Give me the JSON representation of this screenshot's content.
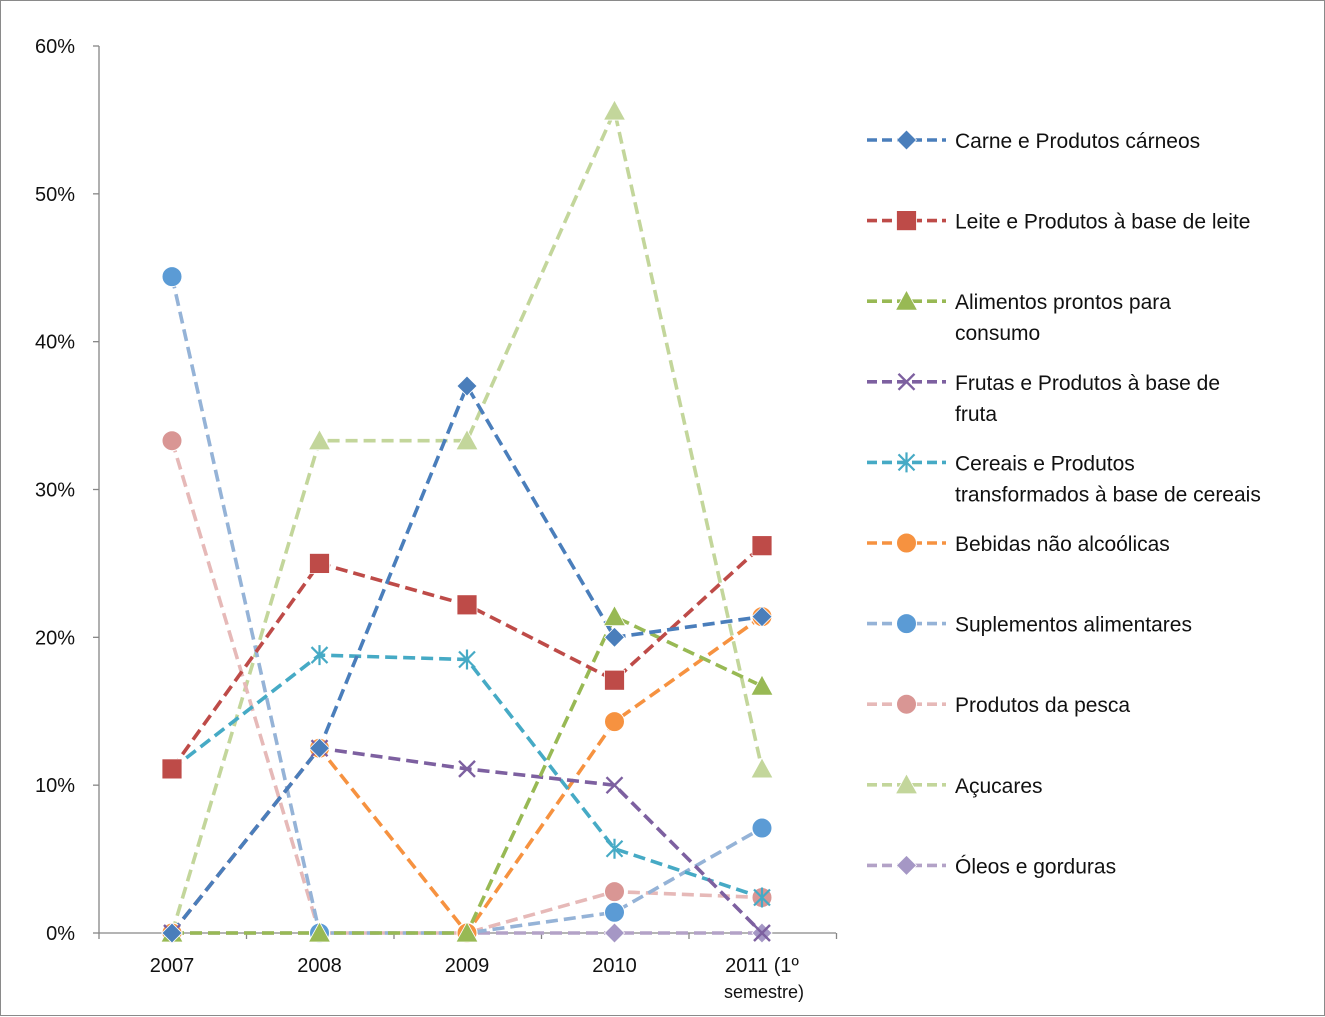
{
  "chart_data": {
    "type": "line",
    "title": "",
    "xlabel": "",
    "ylabel": "",
    "categories": [
      [
        "2007"
      ],
      [
        "2008"
      ],
      [
        "2009"
      ],
      [
        "2010"
      ],
      [
        "2011 (1º",
        "semestre)"
      ]
    ],
    "y_ticks": [
      "0%",
      "10%",
      "20%",
      "30%",
      "40%",
      "50%",
      "60%"
    ],
    "ylim": [
      0,
      60
    ],
    "grid": false,
    "legend_position": "right",
    "line_style": "dashed",
    "series": [
      {
        "name": "Carne e Produtos cárneos",
        "legend_lines": [
          "Carne e Produtos cárneos"
        ],
        "color": "#4A7EBB",
        "marker": "diamond",
        "values": [
          0,
          12.5,
          37.0,
          20.0,
          21.4
        ]
      },
      {
        "name": "Leite e Produtos à base de leite",
        "legend_lines": [
          "Leite e Produtos à base de leite"
        ],
        "color": "#BE4B48",
        "marker": "square",
        "values": [
          11.1,
          25.0,
          22.2,
          17.1,
          26.2
        ]
      },
      {
        "name": "Alimentos prontos para consumo",
        "legend_lines": [
          "Alimentos prontos para",
          "consumo"
        ],
        "color": "#98B954",
        "marker": "triangle",
        "values": [
          0,
          0,
          0,
          21.4,
          16.7
        ]
      },
      {
        "name": "Frutas e Produtos à base de fruta",
        "legend_lines": [
          "Frutas e Produtos à base de",
          "fruta"
        ],
        "color": "#7D60A0",
        "marker": "x",
        "values": [
          0,
          12.5,
          11.1,
          10.0,
          0
        ]
      },
      {
        "name": "Cereais e Produtos transformados à base de cereais",
        "legend_lines": [
          "Cereais e Produtos",
          "transformados à base de cereais"
        ],
        "color": "#46AAC5",
        "marker": "star",
        "values": [
          11.1,
          18.8,
          18.5,
          5.7,
          2.4
        ]
      },
      {
        "name": "Bebidas não alcoólicas",
        "legend_lines": [
          "Bebidas não alcoólicas"
        ],
        "color": "#F69240",
        "marker": "circle",
        "values": [
          0,
          12.5,
          0,
          14.3,
          21.4
        ]
      },
      {
        "name": "Suplementos alimentares",
        "legend_lines": [
          "Suplementos alimentares"
        ],
        "color": "#5B9BD5",
        "line_color": "#95B3D7",
        "marker": "circle",
        "values": [
          44.4,
          0,
          0,
          1.4,
          7.1
        ]
      },
      {
        "name": "Produtos da pesca",
        "legend_lines": [
          "Produtos da pesca"
        ],
        "color": "#D99694",
        "line_color": "#E6B9B8",
        "marker": "circle",
        "values": [
          33.3,
          0,
          0,
          2.8,
          2.4
        ]
      },
      {
        "name": "Açucares",
        "legend_lines": [
          "Açucares"
        ],
        "color": "#C3D69B",
        "marker": "triangle",
        "values": [
          0,
          33.3,
          33.3,
          55.6,
          11.1
        ]
      },
      {
        "name": "Óleos e gorduras",
        "legend_lines": [
          "Óleos e gorduras"
        ],
        "color": "#A597C5",
        "line_color": "#B3A2C7",
        "marker": "diamond",
        "values": [
          0,
          0,
          0,
          0,
          0
        ]
      }
    ]
  }
}
